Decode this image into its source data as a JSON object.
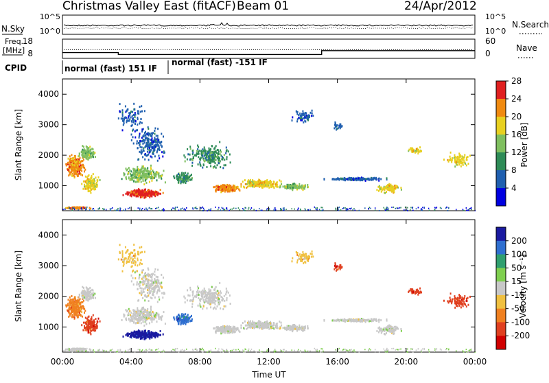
{
  "header": {
    "title": "Christmas Valley East (fitACF)",
    "beam": "Beam 01",
    "date": "24/Apr/2012"
  },
  "labels": {
    "nsky": "N.Sky",
    "nsearch": "N.Search",
    "freq_line1": "Freq.",
    "freq_line2": "[MHz]",
    "nave": "Nave",
    "cpid": "CPID",
    "cpid_segments": [
      "normal (fast) 151 IF",
      "normal (fast) -151 IF"
    ],
    "noise_ticks_left": [
      "10^5",
      "10^0"
    ],
    "noise_ticks_right": [
      "10^5",
      "10^0"
    ],
    "freq_ticks": [
      "18",
      "8"
    ],
    "nave_ticks": [
      "60",
      "0"
    ],
    "x_axis_label": "Time UT"
  },
  "chart_data": [
    {
      "type": "line",
      "panel": "noise",
      "series": [
        {
          "name": "N.Sky"
        },
        {
          "name": "N.Search"
        }
      ]
    },
    {
      "type": "line",
      "panel": "frequency-nave",
      "series": [
        {
          "name": "Freq.",
          "segments": [
            {
              "x": [
                "00:00",
                "03:15"
              ],
              "y": 11
            },
            {
              "x": [
                "03:15",
                "15:05"
              ],
              "y": 10
            },
            {
              "x": [
                "15:05",
                "24:00"
              ],
              "y": 12
            }
          ]
        },
        {
          "name": "Nave",
          "y": 27
        }
      ]
    },
    {
      "type": "heatmap",
      "panel": "power",
      "ylabel": "Slant Range [km]",
      "yticks": [
        1000,
        2000,
        3000,
        4000
      ],
      "ylim": [
        180,
        4500
      ],
      "xticks": [
        "00:00",
        "04:00",
        "08:00",
        "12:00",
        "16:00",
        "20:00",
        "00:00"
      ],
      "colorbar": {
        "label": "Power [dB]",
        "ticks": [
          "4",
          "8",
          "12",
          "16",
          "20",
          "24",
          "28"
        ],
        "colors": [
          "#0000e0",
          "#1f5faf",
          "#2e8b57",
          "#7fbf5f",
          "#e8d020",
          "#f08a10",
          "#e02020"
        ]
      }
    },
    {
      "type": "heatmap",
      "panel": "velocity",
      "ylabel": "Slant Range [km]",
      "yticks": [
        1000,
        2000,
        3000,
        4000
      ],
      "ylim": [
        180,
        4500
      ],
      "xticks": [
        "00:00",
        "04:00",
        "08:00",
        "12:00",
        "16:00",
        "20:00",
        "00:00"
      ],
      "xlabel": "Time UT",
      "colorbar": {
        "label": "Velocity [m s⁻¹]",
        "ticks": [
          "200",
          "100",
          "50",
          "15",
          "-15",
          "-50",
          "-100",
          "-200"
        ],
        "colors": [
          "#1a1aa0",
          "#2f6fd0",
          "#2f9f6f",
          "#7fcf4f",
          "#c8c8c8",
          "#f0c040",
          "#f08020",
          "#e04020",
          "#d00000"
        ]
      }
    }
  ]
}
